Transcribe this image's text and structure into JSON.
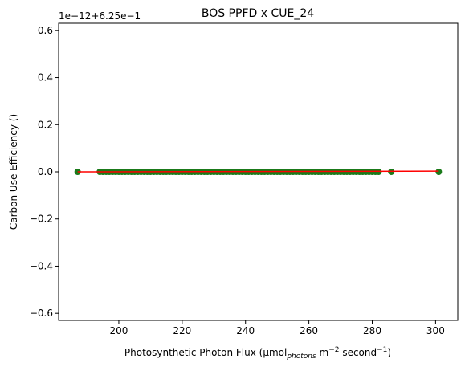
{
  "chart_data": {
    "type": "scatter",
    "title": "BOS PPFD x CUE_24",
    "xlabel": {
      "pre": "Photosynthetic Photon Flux (μmol",
      "sub": "photons",
      "mid1": " m",
      "sup1": "−2",
      "mid2": " second",
      "sup2": "−1",
      "post": ")"
    },
    "ylabel": "Carbon Use Efficiency ()",
    "offset_text": "1e−12+6.25e−1",
    "xlim": [
      181.0,
      307.0
    ],
    "ylim": [
      -0.63,
      0.63
    ],
    "xticks": [
      200,
      220,
      240,
      260,
      280,
      300
    ],
    "yticks": [
      {
        "v": 0.6,
        "label": "0.6"
      },
      {
        "v": 0.4,
        "label": "0.4"
      },
      {
        "v": 0.2,
        "label": "0.2"
      },
      {
        "v": 0.0,
        "label": "0.0"
      },
      {
        "v": -0.2,
        "label": "−0.2"
      },
      {
        "v": -0.4,
        "label": "−0.4"
      },
      {
        "v": -0.6,
        "label": "−0.6"
      }
    ],
    "grid": false,
    "series": [
      {
        "marker": "circle",
        "color": "#1a7a1a",
        "x": [
          187,
          194,
          195,
          196,
          197,
          198,
          199,
          200,
          201,
          202,
          203,
          204,
          205,
          206,
          207,
          208,
          209,
          210,
          211,
          212,
          213,
          214,
          215,
          216,
          217,
          218,
          219,
          220,
          221,
          222,
          223,
          224,
          225,
          226,
          227,
          228,
          229,
          230,
          231,
          232,
          233,
          234,
          235,
          236,
          237,
          238,
          239,
          240,
          241,
          242,
          243,
          244,
          245,
          246,
          247,
          248,
          249,
          250,
          251,
          252,
          253,
          254,
          255,
          256,
          257,
          258,
          259,
          260,
          261,
          262,
          263,
          264,
          265,
          266,
          267,
          268,
          269,
          270,
          271,
          272,
          273,
          274,
          275,
          276,
          277,
          278,
          279,
          280,
          281,
          282,
          286,
          301
        ],
        "y": [
          0,
          0,
          0,
          0,
          0,
          0,
          0,
          0,
          0,
          0,
          0,
          0,
          0,
          0,
          0,
          0,
          0,
          0,
          0,
          0,
          0,
          0,
          0,
          0,
          0,
          0,
          0,
          0,
          0,
          0,
          0,
          0,
          0,
          0,
          0,
          0,
          0,
          0,
          0,
          0,
          0,
          0,
          0,
          0,
          0,
          0,
          0,
          0,
          0,
          0,
          0,
          0,
          0,
          0,
          0,
          0,
          0,
          0,
          0,
          0,
          0,
          0,
          0,
          0,
          0,
          0,
          0,
          0,
          0,
          0,
          0,
          0,
          0,
          0,
          0,
          0,
          0,
          0,
          0,
          0,
          0,
          0,
          0,
          0,
          0,
          0,
          0,
          0,
          0,
          0,
          0,
          0
        ]
      },
      {
        "type": "line",
        "color": "#ff0000",
        "x": [
          187,
          301
        ],
        "y": [
          0,
          0.003
        ]
      }
    ]
  }
}
